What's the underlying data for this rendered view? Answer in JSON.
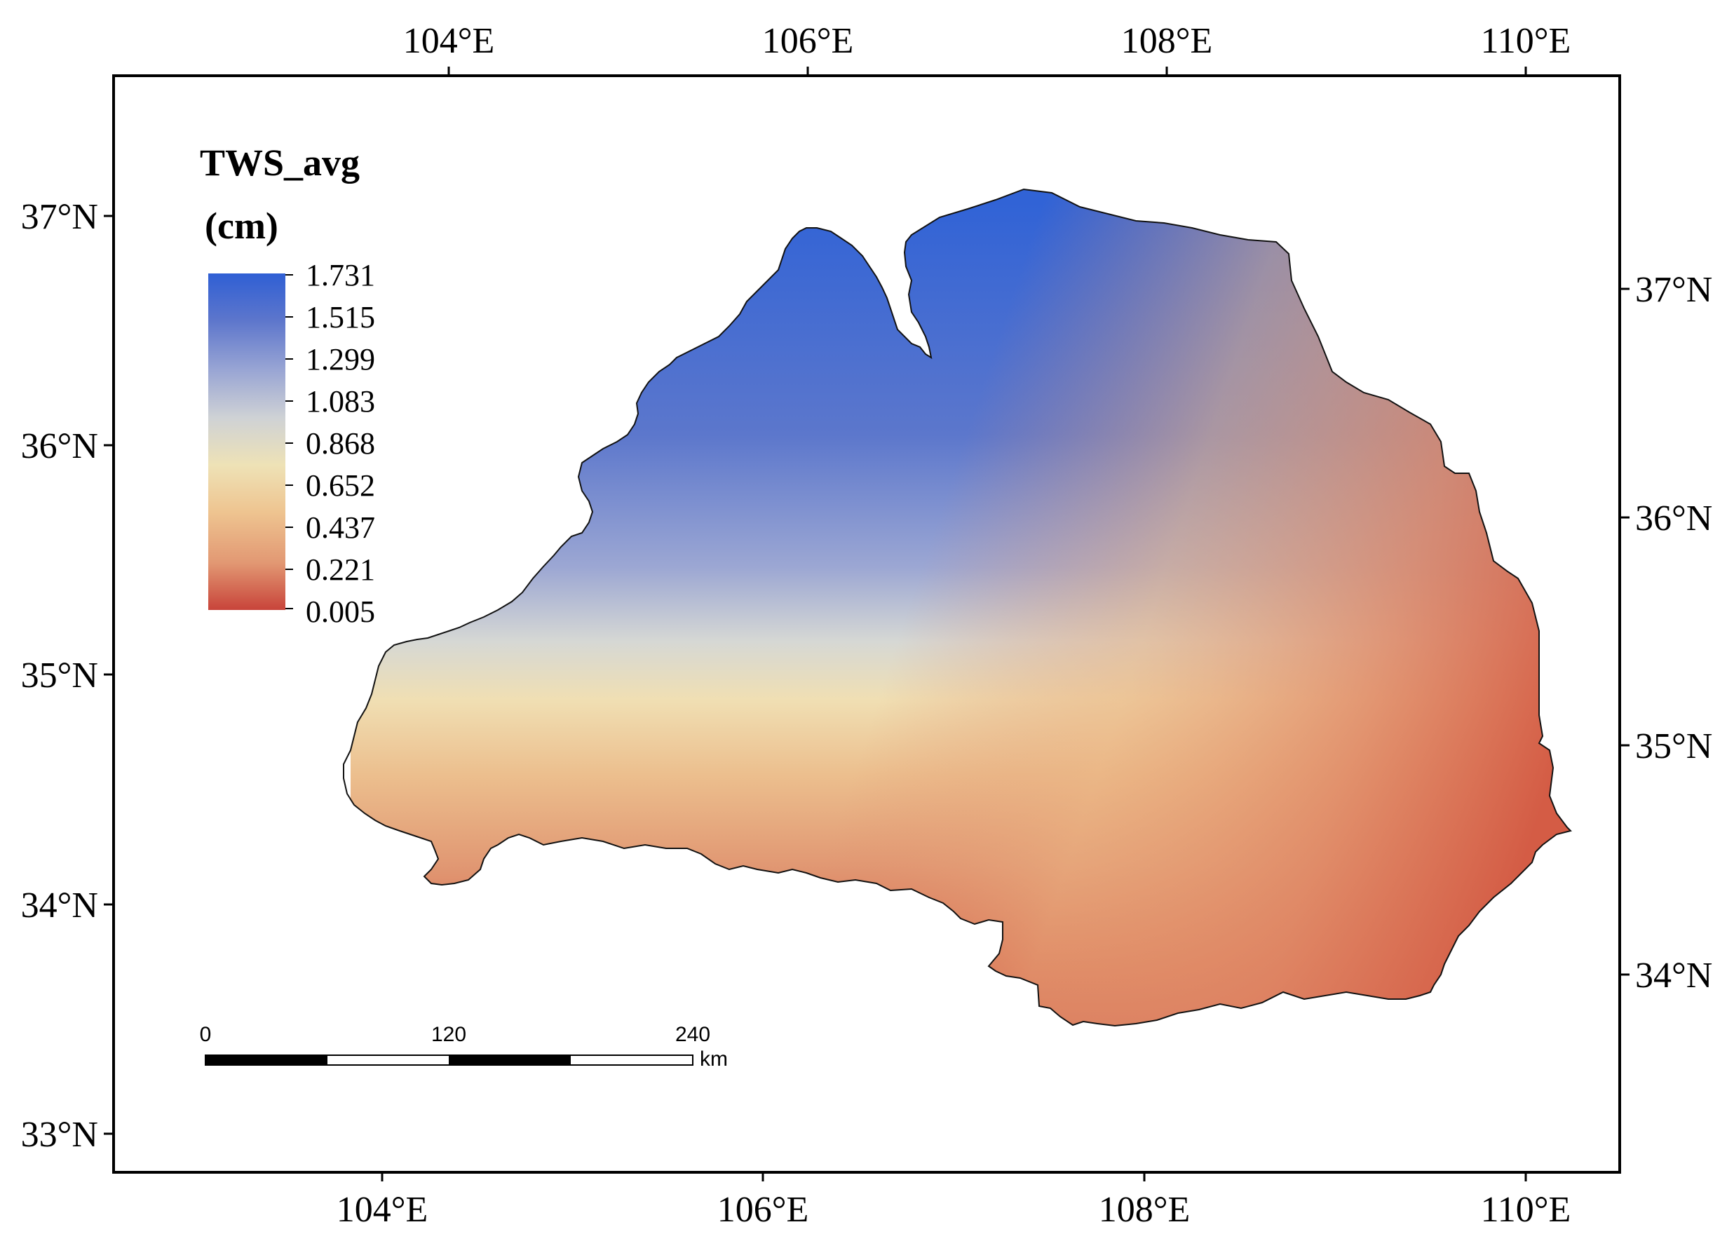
{
  "map": {
    "top_axis_labels": [
      "104°E",
      "106°E",
      "108°E",
      "110°E"
    ],
    "bottom_axis_labels": [
      "104°E",
      "106°E",
      "108°E",
      "110°E"
    ],
    "left_axis_labels": [
      "37°N",
      "36°N",
      "35°N",
      "34°N",
      "33°N"
    ],
    "right_axis_labels": [
      "37°N",
      "36°N",
      "35°N",
      "34°N"
    ]
  },
  "legend": {
    "title_line1": "TWS_avg",
    "title_line2": "(cm)",
    "values": [
      "1.731",
      "1.515",
      "1.299",
      "1.083",
      "0.868",
      "0.652",
      "0.437",
      "0.221",
      "0.005"
    ],
    "min": 0.005,
    "max": 1.731,
    "colors": [
      "#3460d3",
      "#6679cb",
      "#a8b3d3",
      "#dcdcd0",
      "#f1dcaa",
      "#eab280",
      "#de8b68",
      "#ce4c3b"
    ]
  },
  "scale_bar": {
    "labels": [
      "0",
      "120",
      "240"
    ],
    "unit": "km"
  }
}
